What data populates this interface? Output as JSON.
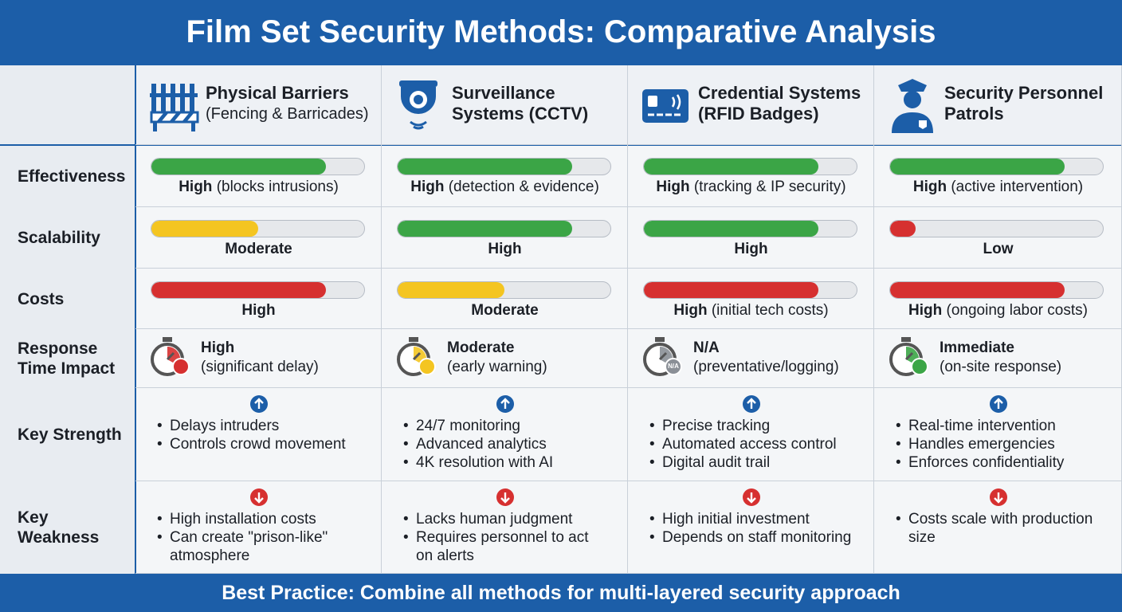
{
  "header": {
    "title": "Film Set Security Methods: Comparative Analysis"
  },
  "columns": [
    {
      "title": [
        "Physical Barriers"
      ],
      "subtitle": "(Fencing & Barricades)"
    },
    {
      "title": [
        "Surveillance",
        "Systems (CCTV)"
      ]
    },
    {
      "title": [
        "Credential Systems",
        "(RFID Badges)"
      ]
    },
    {
      "title": [
        "Security Personnel",
        "Patrols"
      ]
    }
  ],
  "rows": [
    {
      "kind": "bar",
      "label": [
        "Effectiveness"
      ],
      "cells": [
        {
          "rating": "High",
          "note": "(blocks intrusions)",
          "level": 82,
          "color": "#3ba546"
        },
        {
          "rating": "High",
          "note": "(detection & evidence)",
          "level": 82,
          "color": "#3ba546"
        },
        {
          "rating": "High",
          "note": "(tracking & IP security)",
          "level": 82,
          "color": "#3ba546"
        },
        {
          "rating": "High",
          "note": "(active intervention)",
          "level": 82,
          "color": "#3ba546"
        }
      ]
    },
    {
      "kind": "bar",
      "label": [
        "Scalability"
      ],
      "cells": [
        {
          "rating": "Moderate",
          "level": 50,
          "color": "#f4c521"
        },
        {
          "rating": "High",
          "level": 82,
          "color": "#3ba546"
        },
        {
          "rating": "High",
          "level": 82,
          "color": "#3ba546"
        },
        {
          "rating": "Low",
          "level": 12,
          "color": "#d63030"
        }
      ]
    },
    {
      "kind": "bar",
      "label": [
        "Costs"
      ],
      "cells": [
        {
          "rating": "High",
          "level": 82,
          "color": "#d63030"
        },
        {
          "rating": "Moderate",
          "level": 50,
          "color": "#f4c521"
        },
        {
          "rating": "High",
          "note": "(initial tech costs)",
          "level": 82,
          "color": "#d63030"
        },
        {
          "rating": "High",
          "note": "(ongoing labor costs)",
          "level": 82,
          "color": "#d63030"
        }
      ]
    },
    {
      "kind": "response",
      "label": [
        "Response",
        "Time Impact"
      ],
      "cells": [
        {
          "rating": "High",
          "note": "(significant delay)"
        },
        {
          "rating": "Moderate",
          "note": "(early warning)"
        },
        {
          "rating": "N/A",
          "note": "(preventative/logging)"
        },
        {
          "rating": "Immediate",
          "note": "(on-site response)"
        }
      ]
    },
    {
      "kind": "strength",
      "label": [
        "Key Strength"
      ],
      "cells": [
        {
          "items": [
            "Delays intruders",
            "Controls crowd movement"
          ]
        },
        {
          "items": [
            "24/7 monitoring",
            "Advanced analytics",
            "4K resolution with AI"
          ]
        },
        {
          "items": [
            "Precise tracking",
            "Automated access control",
            "Digital audit trail"
          ]
        },
        {
          "items": [
            "Real-time intervention",
            "Handles emergencies",
            "Enforces confidentiality"
          ]
        }
      ]
    },
    {
      "kind": "weakness",
      "label": [
        "Key",
        "Weakness"
      ],
      "cells": [
        {
          "items": [
            "High installation costs",
            [
              "Can create \"prison-like\"",
              "atmosphere"
            ]
          ]
        },
        {
          "items": [
            "Lacks human judgment",
            [
              "Requires personnel to act",
              "on alerts"
            ]
          ]
        },
        {
          "items": [
            "High initial investment",
            "Depends on staff monitoring"
          ]
        },
        {
          "items": [
            [
              "Costs scale with production",
              "size"
            ]
          ]
        }
      ]
    }
  ],
  "footer": {
    "text": "Best Practice: Combine all methods for multi-layered security approach"
  }
}
